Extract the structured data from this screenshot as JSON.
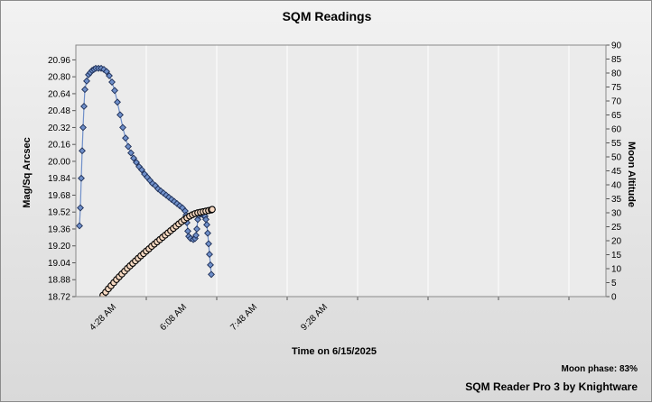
{
  "chart_data": {
    "type": "line",
    "title": "SQM Readings",
    "xlabel": "Time on 6/15/2025",
    "ylabel": "Mag/Sq Arcsec",
    "y2label": "Moon Altitude",
    "x_ticks": [
      "4:28 AM",
      "6:08 AM",
      "7:48 AM",
      "9:28 AM"
    ],
    "y_ticks": [
      "18.72",
      "18.88",
      "19.04",
      "19.20",
      "19.36",
      "19.52",
      "19.68",
      "19.84",
      "20.00",
      "20.16",
      "20.32",
      "20.48",
      "20.64",
      "20.80",
      "20.96"
    ],
    "y2_ticks": [
      "0",
      "5",
      "10",
      "15",
      "20",
      "25",
      "30",
      "35",
      "40",
      "45",
      "50",
      "55",
      "60",
      "65",
      "70",
      "75",
      "80",
      "85",
      "90"
    ],
    "ylim": [
      18.72,
      21.1
    ],
    "y2lim": [
      0,
      90
    ],
    "grid": true,
    "series": [
      {
        "color": "#6f8fc9",
        "marker": "diamond",
        "points": [
          [
            4,
            19.39
          ],
          [
            5,
            19.56
          ],
          [
            6,
            19.84
          ],
          [
            7,
            20.1
          ],
          [
            8,
            20.32
          ],
          [
            9,
            20.52
          ],
          [
            10,
            20.68
          ],
          [
            12,
            20.76
          ],
          [
            14,
            20.82
          ],
          [
            16,
            20.84
          ],
          [
            18,
            20.86
          ],
          [
            20,
            20.87
          ],
          [
            22,
            20.88
          ],
          [
            25,
            20.88
          ],
          [
            28,
            20.88
          ],
          [
            31,
            20.87
          ],
          [
            34,
            20.85
          ],
          [
            37,
            20.81
          ],
          [
            40,
            20.75
          ],
          [
            43,
            20.67
          ],
          [
            46,
            20.56
          ],
          [
            49,
            20.44
          ],
          [
            52,
            20.32
          ],
          [
            55,
            20.22
          ],
          [
            58,
            20.14
          ],
          [
            61,
            20.08
          ],
          [
            64,
            20.03
          ],
          [
            67,
            19.99
          ],
          [
            70,
            19.95
          ],
          [
            73,
            19.92
          ],
          [
            76,
            19.88
          ],
          [
            79,
            19.85
          ],
          [
            82,
            19.82
          ],
          [
            85,
            19.79
          ],
          [
            88,
            19.77
          ],
          [
            91,
            19.74
          ],
          [
            94,
            19.72
          ],
          [
            97,
            19.7
          ],
          [
            100,
            19.68
          ],
          [
            103,
            19.66
          ],
          [
            106,
            19.64
          ],
          [
            109,
            19.62
          ],
          [
            112,
            19.6
          ],
          [
            115,
            19.58
          ],
          [
            118,
            19.56
          ],
          [
            121,
            19.53
          ],
          [
            122,
            19.49
          ],
          [
            123,
            19.42
          ],
          [
            124,
            19.34
          ],
          [
            125,
            19.29
          ],
          [
            127,
            19.27
          ],
          [
            130,
            19.26
          ],
          [
            132,
            19.27
          ],
          [
            133,
            19.3
          ],
          [
            134,
            19.36
          ],
          [
            135,
            19.45
          ],
          [
            136,
            19.49
          ],
          [
            138,
            19.5
          ],
          [
            141,
            19.49
          ],
          [
            143,
            19.48
          ],
          [
            144,
            19.45
          ],
          [
            145,
            19.4
          ],
          [
            146,
            19.32
          ],
          [
            147,
            19.22
          ],
          [
            148,
            19.12
          ],
          [
            149,
            19.02
          ],
          [
            150,
            18.93
          ]
        ]
      },
      {
        "color": "#f7d9c2",
        "marker": "circle",
        "axis": "right",
        "points": [
          [
            30,
            0.5
          ],
          [
            33,
            1.6
          ],
          [
            36,
            2.8
          ],
          [
            39,
            3.9
          ],
          [
            42,
            5
          ],
          [
            45,
            6.1
          ],
          [
            48,
            7.1
          ],
          [
            51,
            8.1
          ],
          [
            54,
            9.1
          ],
          [
            57,
            10.1
          ],
          [
            60,
            11
          ],
          [
            63,
            11.9
          ],
          [
            66,
            12.8
          ],
          [
            69,
            13.7
          ],
          [
            72,
            14.6
          ],
          [
            75,
            15.4
          ],
          [
            78,
            16.3
          ],
          [
            81,
            17.1
          ],
          [
            84,
            18
          ],
          [
            87,
            18.8
          ],
          [
            90,
            19.6
          ],
          [
            93,
            20.4
          ],
          [
            96,
            21.2
          ],
          [
            99,
            22
          ],
          [
            102,
            22.8
          ],
          [
            105,
            23.6
          ],
          [
            108,
            24.4
          ],
          [
            111,
            25.2
          ],
          [
            114,
            26
          ],
          [
            117,
            26.8
          ],
          [
            120,
            27.5
          ],
          [
            123,
            28.2
          ],
          [
            126,
            28.8
          ],
          [
            129,
            29.3
          ],
          [
            132,
            29.7
          ],
          [
            135,
            30
          ],
          [
            138,
            30.2
          ],
          [
            141,
            30.4
          ],
          [
            144,
            30.6
          ],
          [
            147,
            30.8
          ],
          [
            150,
            31
          ],
          [
            151,
            31.2
          ]
        ]
      }
    ],
    "footer": {
      "moon_phase": "Moon phase: 83%",
      "credit": "SQM Reader Pro 3 by Knightware"
    }
  }
}
